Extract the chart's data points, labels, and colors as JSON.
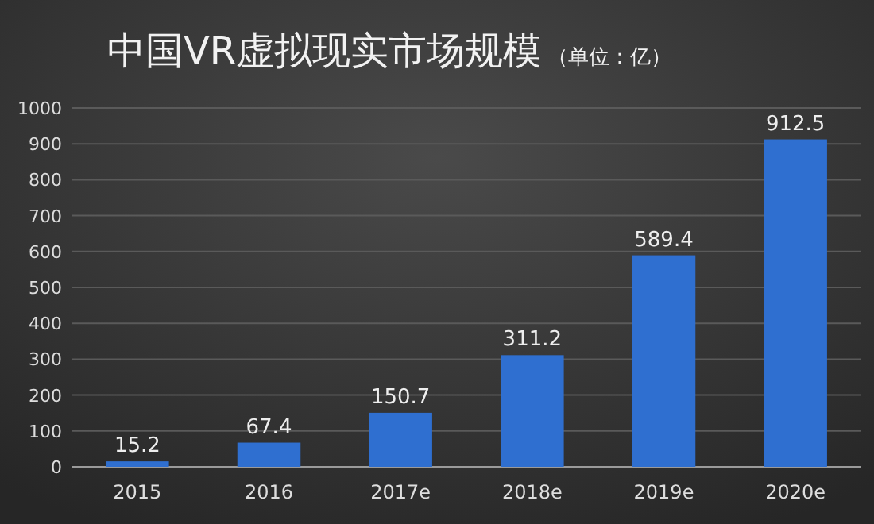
{
  "chart_data": {
    "type": "bar",
    "title": "中国VR虚拟现实市场规模",
    "subtitle": "（单位：亿）",
    "categories": [
      "2015",
      "2016",
      "2017e",
      "2018e",
      "2019e",
      "2020e"
    ],
    "values": [
      15.2,
      67.4,
      150.7,
      311.2,
      589.4,
      912.5
    ],
    "color": "#2f6fd0",
    "ylim": [
      0,
      1000
    ],
    "yticks": [
      0,
      100,
      200,
      300,
      400,
      500,
      600,
      700,
      800,
      900,
      1000
    ],
    "grid": true,
    "data_labels": true
  }
}
